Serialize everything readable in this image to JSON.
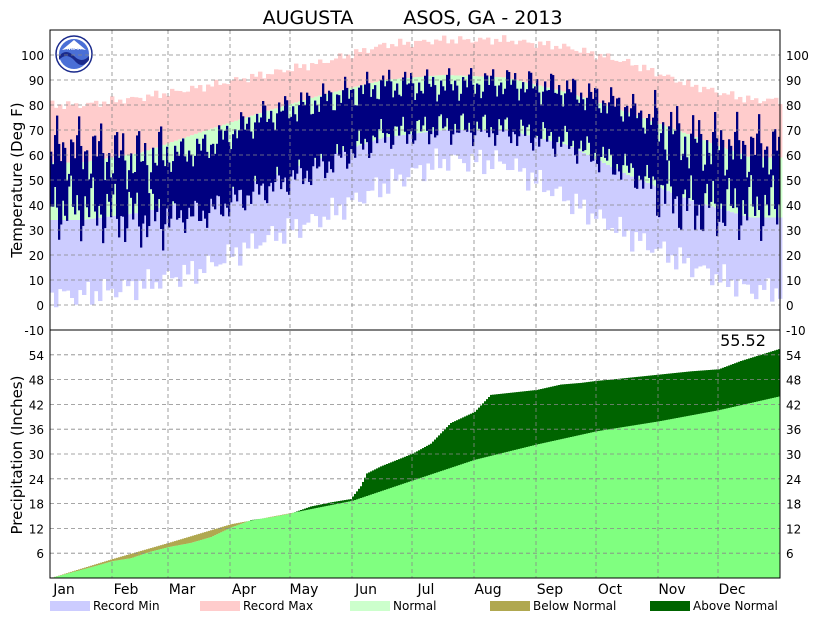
{
  "chart_data": [
    {
      "panel": "temperature",
      "type": "area",
      "title_left": "AUGUSTA",
      "title_right": "ASOS, GA - 2013",
      "ylabel": "Temperature (Deg F)",
      "ylim": [
        -10,
        110
      ],
      "yticks": [
        -10,
        0,
        10,
        20,
        30,
        40,
        50,
        60,
        70,
        80,
        90,
        100
      ],
      "months": [
        "Jan",
        "Feb",
        "Mar",
        "Apr",
        "May",
        "Jun",
        "Jul",
        "Aug",
        "Sep",
        "Oct",
        "Nov",
        "Dec"
      ],
      "grid": true,
      "series": [
        {
          "name": "Record Max",
          "color": "#ffcccc",
          "monthly_values": [
            80,
            83,
            87,
            92,
            97,
            104,
            106,
            106,
            103,
            97,
            88,
            82
          ]
        },
        {
          "name": "Record Min",
          "color": "#ccccff",
          "monthly_values": [
            4,
            8,
            14,
            26,
            35,
            48,
            58,
            57,
            42,
            28,
            16,
            6
          ]
        },
        {
          "name": "Normal",
          "color": "#ccffcc",
          "normal_high": [
            57,
            61,
            69,
            77,
            84,
            90,
            92,
            91,
            85,
            77,
            68,
            59
          ],
          "normal_low": [
            34,
            37,
            43,
            50,
            59,
            67,
            70,
            70,
            64,
            52,
            42,
            35
          ]
        },
        {
          "name": "Observed",
          "color": "#000080",
          "monthly_high": [
            62,
            58,
            62,
            75,
            82,
            88,
            88,
            89,
            86,
            79,
            65,
            63
          ],
          "monthly_low": [
            40,
            36,
            37,
            47,
            56,
            69,
            72,
            71,
            66,
            55,
            40,
            40
          ]
        }
      ]
    },
    {
      "panel": "precipitation",
      "type": "area",
      "ylabel": "Precipitation (Inches)",
      "ylim": [
        0,
        60
      ],
      "yticks": [
        6,
        12,
        18,
        24,
        30,
        36,
        42,
        48,
        54
      ],
      "months": [
        "Jan",
        "Feb",
        "Mar",
        "Apr",
        "May",
        "Jun",
        "Jul",
        "Aug",
        "Sep",
        "Oct",
        "Nov",
        "Dec"
      ],
      "annotation": "55.52",
      "grid": true,
      "normal_cumulative": {
        "day": [
          0,
          31,
          59,
          90,
          120,
          151,
          181,
          212,
          243,
          273,
          304,
          334,
          365
        ],
        "value": [
          0,
          4.6,
          8.5,
          13.0,
          15.7,
          18.7,
          23.6,
          28.6,
          32.3,
          35.5,
          37.9,
          40.6,
          44.0
        ]
      },
      "observed_cumulative": {
        "day": [
          0,
          20,
          31,
          40,
          50,
          59,
          70,
          80,
          90,
          100,
          110,
          120,
          130,
          140,
          150,
          155,
          158,
          165,
          181,
          190,
          200,
          212,
          220,
          243,
          255,
          265,
          273,
          280,
          300,
          320,
          334,
          345,
          355,
          365
        ],
        "value": [
          0,
          2.6,
          4.1,
          4.8,
          6.4,
          7.5,
          8.5,
          9.9,
          12.2,
          14.0,
          14.7,
          15.6,
          17.3,
          18.3,
          19.1,
          22.2,
          25.3,
          27.0,
          30.1,
          32.5,
          37.5,
          40.2,
          44.3,
          45.5,
          46.8,
          47.2,
          47.7,
          48.0,
          49.0,
          50.0,
          50.5,
          52.5,
          54.0,
          55.52
        ]
      },
      "series": [
        {
          "name": "Below Normal",
          "color": "#b0a850"
        },
        {
          "name": "Above Normal",
          "color": "#006400"
        },
        {
          "name": "Normal",
          "color": "#80ff80"
        }
      ]
    }
  ],
  "legend": [
    {
      "label": "Record Min",
      "color": "#ccccff"
    },
    {
      "label": "Record Max",
      "color": "#ffcccc"
    },
    {
      "label": "Normal",
      "color": "#ccffcc"
    },
    {
      "label": "Below Normal",
      "color": "#b0a850"
    },
    {
      "label": "Above Normal",
      "color": "#006400"
    }
  ]
}
